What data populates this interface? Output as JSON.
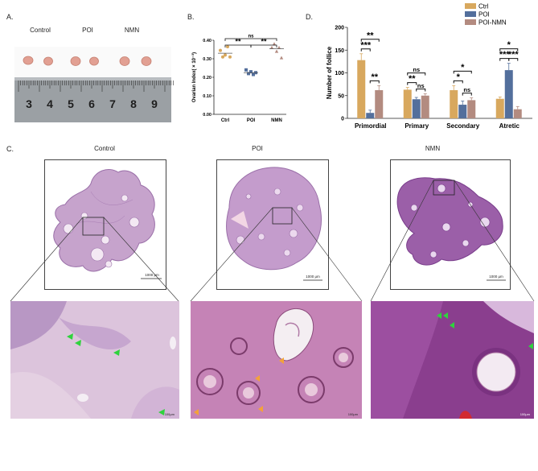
{
  "panels": {
    "a": "A.",
    "b": "B.",
    "c": "C.",
    "d": "D."
  },
  "panel_a": {
    "groups": [
      "Control",
      "POI",
      "NMN"
    ],
    "ruler_numbers": [
      "3",
      "4",
      "5",
      "6",
      "7",
      "8",
      "9"
    ]
  },
  "panel_c": {
    "columns": [
      "Control",
      "POI",
      "NMN"
    ],
    "scale_bars": [
      "1000 μm",
      "1000 μm",
      "1000 μm"
    ],
    "zoom_scale": [
      "100μm",
      "100μm",
      "100μm"
    ]
  },
  "colors": {
    "ctrl": "#d8a85e",
    "poi": "#536f9c",
    "nmn": "#b38b80"
  },
  "chart_data": [
    {
      "type": "scatter",
      "ylabel": "Ovarian Index( × 10⁻³)",
      "categories": [
        "Ctrl",
        "POI",
        "NMN"
      ],
      "yticks": [
        "0.00",
        "0.10",
        "0.20",
        "0.30",
        "0.40"
      ],
      "ylim": [
        0,
        0.4
      ],
      "means": [
        0.33,
        0.225,
        0.355
      ],
      "points": [
        [
          0.345,
          0.31,
          0.32,
          0.365,
          0.31
        ],
        [
          0.24,
          0.22,
          0.23,
          0.215,
          0.225
        ],
        [
          0.36,
          0.38,
          0.34,
          0.36,
          0.305
        ]
      ],
      "significance": [
        {
          "from": 0,
          "to": 1,
          "label": "**"
        },
        {
          "from": 1,
          "to": 2,
          "label": "**"
        },
        {
          "from": 0,
          "to": 2,
          "label": "ns"
        }
      ]
    },
    {
      "type": "bar",
      "ylabel": "Number of follice",
      "categories": [
        "Primordial",
        "Primary",
        "Secondary",
        "Atretic"
      ],
      "yticks": [
        "0",
        "50",
        "100",
        "150",
        "200"
      ],
      "ylim": [
        0,
        200
      ],
      "legend": [
        "Ctrl",
        "POI",
        "POI-NMN"
      ],
      "series": [
        {
          "values": [
            128,
            63,
            62,
            43
          ],
          "err": [
            14,
            5,
            10,
            4
          ]
        },
        {
          "values": [
            12,
            42,
            30,
            106
          ],
          "err": [
            6,
            4,
            8,
            15
          ]
        },
        {
          "values": [
            62,
            50,
            40,
            20
          ],
          "err": [
            10,
            4,
            5,
            6
          ]
        }
      ],
      "significance": [
        {
          "cat": 0,
          "from": 0,
          "to": 1,
          "label": "***",
          "level": 0
        },
        {
          "cat": 0,
          "from": 0,
          "to": 2,
          "label": "**",
          "level": 1
        },
        {
          "cat": 0,
          "from": 1,
          "to": 2,
          "label": "**",
          "level": 0
        },
        {
          "cat": 1,
          "from": 0,
          "to": 1,
          "label": "**",
          "level": 0
        },
        {
          "cat": 1,
          "from": 0,
          "to": 2,
          "label": "ns",
          "level": 1
        },
        {
          "cat": 1,
          "from": 1,
          "to": 2,
          "label": "ns",
          "level": 0
        },
        {
          "cat": 2,
          "from": 0,
          "to": 1,
          "label": "*",
          "level": 0
        },
        {
          "cat": 2,
          "from": 0,
          "to": 2,
          "label": "*",
          "level": 1
        },
        {
          "cat": 2,
          "from": 1,
          "to": 2,
          "label": "ns",
          "level": 0
        },
        {
          "cat": 3,
          "from": 0,
          "to": 1,
          "label": "***",
          "level": 0
        },
        {
          "cat": 3,
          "from": 0,
          "to": 2,
          "label": "*",
          "level": 1
        },
        {
          "cat": 3,
          "from": 1,
          "to": 2,
          "label": "***",
          "level": 0
        }
      ]
    }
  ]
}
